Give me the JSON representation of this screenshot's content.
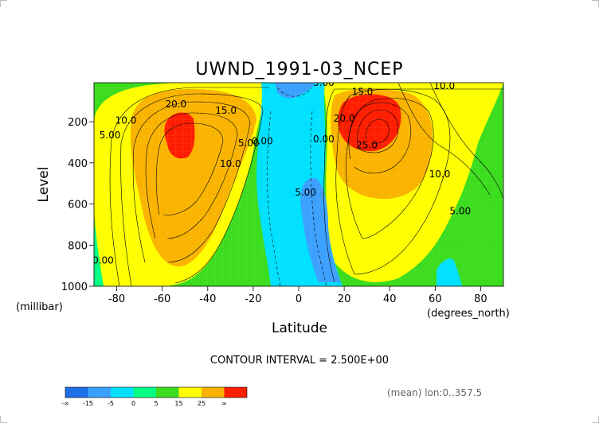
{
  "chart_data": {
    "type": "contour",
    "title": "UWND_1991-03_NCEP",
    "xlabel": "Latitude",
    "ylabel": "Level",
    "x_unit": "(degrees_north)",
    "y_unit": "(millibar)",
    "xlim": [
      -90,
      90
    ],
    "ylim": [
      1000,
      10
    ],
    "y_axis_reversed": true,
    "x_ticks": [
      -80,
      -60,
      -40,
      -20,
      0,
      20,
      40,
      60,
      80
    ],
    "y_ticks": [
      200,
      400,
      600,
      800,
      1000
    ],
    "contour_interval_text": "CONTOUR INTERVAL = 2.500E+00",
    "footer_note": "(mean) lon:0..357.5",
    "field_samples": [
      {
        "lat": -60,
        "level": 300,
        "value": 20.0
      },
      {
        "lat": -55,
        "level": 250,
        "value": 25.0
      },
      {
        "lat": -30,
        "level": 100,
        "value": 15.0
      },
      {
        "lat": 0,
        "level": 50,
        "value": -5.0
      },
      {
        "lat": 5,
        "level": 600,
        "value": -5.0
      },
      {
        "lat": 30,
        "level": 200,
        "value": 27.5
      },
      {
        "lat": 50,
        "level": 100,
        "value": 10.0
      },
      {
        "lat": -80,
        "level": 900,
        "value": 0.0
      }
    ],
    "contour_labels": [
      {
        "text": "20.0",
        "lat": -54,
        "level": 130
      },
      {
        "text": "15.0",
        "lat": -32,
        "level": 160
      },
      {
        "text": "10.0",
        "lat": -76,
        "level": 210
      },
      {
        "text": "5.00",
        "lat": -83,
        "level": 280
      },
      {
        "text": "10.0",
        "lat": -30,
        "level": 420
      },
      {
        "text": "5.00",
        "lat": -22,
        "level": 320
      },
      {
        "text": "0.00",
        "lat": -16,
        "level": 310
      },
      {
        "text": "5.00",
        "lat": 11,
        "level": 25
      },
      {
        "text": "0.00",
        "lat": 11,
        "level": 300
      },
      {
        "text": "5.00",
        "lat": 3,
        "level": 560
      },
      {
        "text": "15.0",
        "lat": 28,
        "level": 70
      },
      {
        "text": "10.0",
        "lat": 64,
        "level": 40
      },
      {
        "text": "20.0",
        "lat": 20,
        "level": 200
      },
      {
        "text": "25.0",
        "lat": 30,
        "level": 330
      },
      {
        "text": "10.0",
        "lat": 62,
        "level": 470
      },
      {
        "text": "5.00",
        "lat": 71,
        "level": 650
      },
      {
        "text": "0.00",
        "lat": -86,
        "level": 890
      }
    ],
    "colorbar": {
      "colors": [
        "#1e6ee6",
        "#3ca0ff",
        "#00e1ff",
        "#00ff84",
        "#3cdc1e",
        "#ffff00",
        "#fab400",
        "#ff1e00"
      ],
      "labels": [
        "-∞",
        "-15",
        "-5",
        "0",
        "5",
        "15",
        "25",
        "∞"
      ]
    }
  }
}
